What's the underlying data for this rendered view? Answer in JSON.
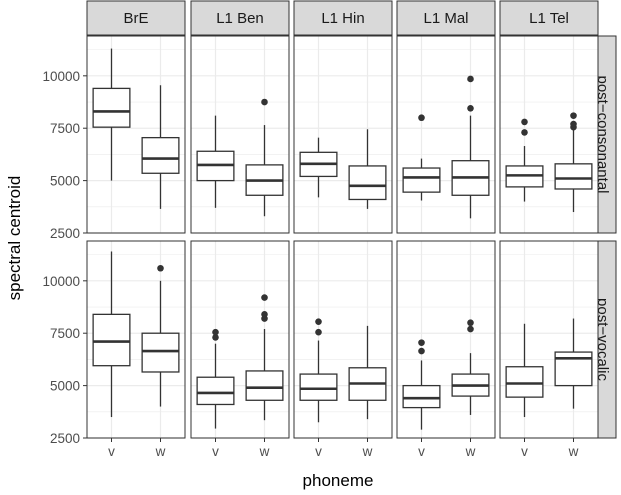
{
  "chart_data": {
    "type": "boxplot",
    "xlabel": "phoneme",
    "ylabel": "spectral centroid",
    "ylim": [
      2500,
      11900
    ],
    "yticks": [
      2500,
      5000,
      7500,
      10000
    ],
    "categories": [
      "v",
      "w"
    ],
    "columns": [
      "BrE",
      "L1 Ben",
      "L1 Hin",
      "L1 Mal",
      "L1 Tel"
    ],
    "rows": [
      "post−consonantal",
      "post−vocalic"
    ],
    "grid": true,
    "legend": "none",
    "colors": {
      "panel_bg": "#ffffff",
      "grid": "#ebebeb",
      "strip_bg": "#d9d9d9",
      "border": "#333333",
      "box": "#333333"
    },
    "panels": [
      {
        "column": "BrE",
        "row": "post−consonantal",
        "boxes": [
          {
            "phoneme": "v",
            "min": 5000,
            "q1": 7550,
            "median": 8300,
            "q3": 9400,
            "max": 11300,
            "outliers": []
          },
          {
            "phoneme": "w",
            "min": 3650,
            "q1": 5350,
            "median": 6050,
            "q3": 7050,
            "max": 9550,
            "outliers": []
          }
        ]
      },
      {
        "column": "L1 Ben",
        "row": "post−consonantal",
        "boxes": [
          {
            "phoneme": "v",
            "min": 3700,
            "q1": 5000,
            "median": 5750,
            "q3": 6400,
            "max": 8100,
            "outliers": []
          },
          {
            "phoneme": "w",
            "min": 3300,
            "q1": 4300,
            "median": 5000,
            "q3": 5750,
            "max": 7650,
            "outliers": [
              8750
            ]
          }
        ]
      },
      {
        "column": "L1 Hin",
        "row": "post−consonantal",
        "boxes": [
          {
            "phoneme": "v",
            "min": 4200,
            "q1": 5200,
            "median": 5800,
            "q3": 6350,
            "max": 7050,
            "outliers": []
          },
          {
            "phoneme": "w",
            "min": 3650,
            "q1": 4100,
            "median": 4750,
            "q3": 5700,
            "max": 7450,
            "outliers": []
          }
        ]
      },
      {
        "column": "L1 Mal",
        "row": "post−consonantal",
        "boxes": [
          {
            "phoneme": "v",
            "min": 4050,
            "q1": 4450,
            "median": 5150,
            "q3": 5600,
            "max": 6050,
            "outliers": [
              8000
            ]
          },
          {
            "phoneme": "w",
            "min": 3200,
            "q1": 4300,
            "median": 5150,
            "q3": 5950,
            "max": 8100,
            "outliers": [
              8450,
              9850
            ]
          }
        ]
      },
      {
        "column": "L1 Tel",
        "row": "post−consonantal",
        "boxes": [
          {
            "phoneme": "v",
            "min": 4000,
            "q1": 4700,
            "median": 5250,
            "q3": 5700,
            "max": 6650,
            "outliers": [
              7300,
              7800
            ]
          },
          {
            "phoneme": "w",
            "min": 3500,
            "q1": 4600,
            "median": 5100,
            "q3": 5800,
            "max": 7450,
            "outliers": [
              7550,
              7700,
              8100
            ]
          }
        ]
      },
      {
        "column": "BrE",
        "row": "post−vocalic",
        "boxes": [
          {
            "phoneme": "v",
            "min": 3500,
            "q1": 5950,
            "median": 7100,
            "q3": 8400,
            "max": 11400,
            "outliers": []
          },
          {
            "phoneme": "w",
            "min": 4000,
            "q1": 5650,
            "median": 6650,
            "q3": 7500,
            "max": 10000,
            "outliers": [
              10600
            ]
          }
        ]
      },
      {
        "column": "L1 Ben",
        "row": "post−vocalic",
        "boxes": [
          {
            "phoneme": "v",
            "min": 2950,
            "q1": 4100,
            "median": 4650,
            "q3": 5400,
            "max": 7000,
            "outliers": [
              7300,
              7550
            ]
          },
          {
            "phoneme": "w",
            "min": 3350,
            "q1": 4300,
            "median": 4900,
            "q3": 5700,
            "max": 7700,
            "outliers": [
              8200,
              8400,
              9200
            ]
          }
        ]
      },
      {
        "column": "L1 Hin",
        "row": "post−vocalic",
        "boxes": [
          {
            "phoneme": "v",
            "min": 3250,
            "q1": 4300,
            "median": 4850,
            "q3": 5550,
            "max": 7150,
            "outliers": [
              7550,
              8050
            ]
          },
          {
            "phoneme": "w",
            "min": 3400,
            "q1": 4300,
            "median": 5100,
            "q3": 5850,
            "max": 7850,
            "outliers": []
          }
        ]
      },
      {
        "column": "L1 Mal",
        "row": "post−vocalic",
        "boxes": [
          {
            "phoneme": "v",
            "min": 2900,
            "q1": 3950,
            "median": 4400,
            "q3": 5000,
            "max": 6200,
            "outliers": [
              6650,
              7050
            ]
          },
          {
            "phoneme": "w",
            "min": 3600,
            "q1": 4500,
            "median": 5000,
            "q3": 5550,
            "max": 6550,
            "outliers": [
              7700,
              8000
            ]
          }
        ]
      },
      {
        "column": "L1 Tel",
        "row": "post−vocalic",
        "boxes": [
          {
            "phoneme": "v",
            "min": 3500,
            "q1": 4450,
            "median": 5100,
            "q3": 5900,
            "max": 7950,
            "outliers": []
          },
          {
            "phoneme": "w",
            "min": 3900,
            "q1": 5000,
            "median": 6300,
            "q3": 6600,
            "max": 8200,
            "outliers": []
          }
        ]
      }
    ]
  }
}
